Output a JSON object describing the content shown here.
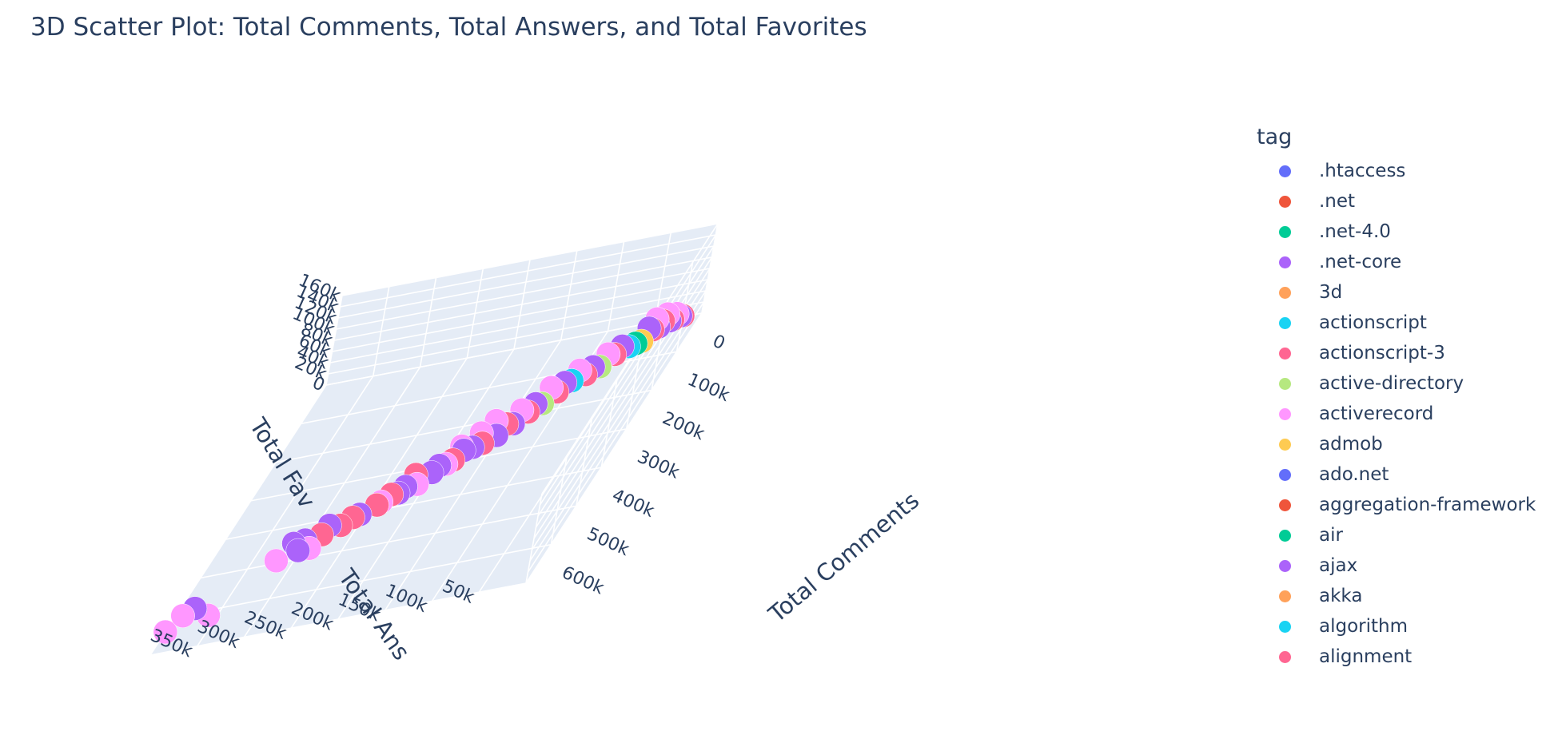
{
  "title": "3D Scatter Plot: Total Comments, Total Answers, and Total Favorites",
  "legend": {
    "title": "tag",
    "items": [
      {
        "label": ".htaccess",
        "color": "#636efa"
      },
      {
        "label": ".net",
        "color": "#EF553B"
      },
      {
        "label": ".net-4.0",
        "color": "#00cc96"
      },
      {
        "label": ".net-core",
        "color": "#ab63fa"
      },
      {
        "label": "3d",
        "color": "#FFA15A"
      },
      {
        "label": "actionscript",
        "color": "#19d3f3"
      },
      {
        "label": "actionscript-3",
        "color": "#FF6692"
      },
      {
        "label": "active-directory",
        "color": "#B6E880"
      },
      {
        "label": "activerecord",
        "color": "#FF97FF"
      },
      {
        "label": "admob",
        "color": "#FECB52"
      },
      {
        "label": "ado.net",
        "color": "#636efa"
      },
      {
        "label": "aggregation-framework",
        "color": "#EF553B"
      },
      {
        "label": "air",
        "color": "#00cc96"
      },
      {
        "label": "ajax",
        "color": "#ab63fa"
      },
      {
        "label": "akka",
        "color": "#FFA15A"
      },
      {
        "label": "algorithm",
        "color": "#19d3f3"
      },
      {
        "label": "alignment",
        "color": "#FF6692"
      }
    ]
  },
  "chart_data": {
    "type": "scatter",
    "xlabel": "Total Comments",
    "ylabel": "Total Ans",
    "zlabel": "Total Fav",
    "x_ticks": [
      "0",
      "100k",
      "200k",
      "300k",
      "400k",
      "500k",
      "600k"
    ],
    "y_ticks": [
      "50k",
      "100k",
      "150k",
      "200k",
      "250k",
      "300k",
      "350k"
    ],
    "z_ticks": [
      "0",
      "20k",
      "40k",
      "60k",
      "80k",
      "100k",
      "120k",
      "140k",
      "160k"
    ],
    "grid": true,
    "legend_position": "right",
    "points": [
      {
        "tag": "activerecord",
        "x": 640000,
        "y": 400000,
        "z": 0
      },
      {
        "tag": "activerecord",
        "x": 610000,
        "y": 390000,
        "z": 5000
      },
      {
        "tag": "activerecord",
        "x": 620000,
        "y": 360000,
        "z": 3000
      },
      {
        "tag": "ajax",
        "x": 600000,
        "y": 380000,
        "z": 8000
      },
      {
        "tag": "activerecord",
        "x": 500000,
        "y": 320000,
        "z": 5000
      },
      {
        "tag": "activerecord",
        "x": 480000,
        "y": 290000,
        "z": 4000
      },
      {
        "tag": "ajax",
        "x": 490000,
        "y": 300000,
        "z": 10000
      },
      {
        "tag": "ajax",
        "x": 470000,
        "y": 310000,
        "z": 12000
      },
      {
        "tag": "ajax",
        "x": 460000,
        "y": 300000,
        "z": 8000
      },
      {
        "tag": "actionscript-3",
        "x": 450000,
        "y": 285000,
        "z": 6000
      },
      {
        "tag": "ajax",
        "x": 440000,
        "y": 280000,
        "z": 14000
      },
      {
        "tag": "actionscript-3",
        "x": 430000,
        "y": 270000,
        "z": 4000
      },
      {
        "tag": "actionscript-3",
        "x": 420000,
        "y": 260000,
        "z": 8000
      },
      {
        "tag": "ajax",
        "x": 410000,
        "y": 255000,
        "z": 5000
      },
      {
        "tag": "actionscript-3",
        "x": 400000,
        "y": 240000,
        "z": 10000
      },
      {
        "tag": "activerecord",
        "x": 380000,
        "y": 240000,
        "z": 2000
      },
      {
        "tag": "actionscript-3",
        "x": 380000,
        "y": 230000,
        "z": 12000
      },
      {
        "tag": "ajax",
        "x": 370000,
        "y": 225000,
        "z": 6000
      },
      {
        "tag": "ajax",
        "x": 360000,
        "y": 220000,
        "z": 9000
      },
      {
        "tag": "activerecord",
        "x": 350000,
        "y": 210000,
        "z": 3000
      },
      {
        "tag": "actionscript-3",
        "x": 340000,
        "y": 215000,
        "z": 15000
      },
      {
        "tag": "ajax",
        "x": 330000,
        "y": 200000,
        "z": 7000
      },
      {
        "tag": "ajax",
        "x": 320000,
        "y": 195000,
        "z": 11000
      },
      {
        "tag": "activerecord",
        "x": 310000,
        "y": 190000,
        "z": 5000
      },
      {
        "tag": "actionscript-3",
        "x": 300000,
        "y": 185000,
        "z": 4000
      },
      {
        "tag": "ajax",
        "x": 300000,
        "y": 175000,
        "z": 18000
      },
      {
        "tag": "activerecord",
        "x": 290000,
        "y": 180000,
        "z": 20000
      },
      {
        "tag": "ajax",
        "x": 280000,
        "y": 170000,
        "z": 8000
      },
      {
        "tag": "actionscript-3",
        "x": 280000,
        "y": 160000,
        "z": 12000
      },
      {
        "tag": "activerecord",
        "x": 270000,
        "y": 165000,
        "z": 25000
      },
      {
        "tag": "ajax",
        "x": 260000,
        "y": 150000,
        "z": 9000
      },
      {
        "tag": "activerecord",
        "x": 250000,
        "y": 155000,
        "z": 30000
      },
      {
        "tag": "actionscript-3",
        "x": 240000,
        "y": 145000,
        "z": 14000
      },
      {
        "tag": "ajax",
        "x": 230000,
        "y": 140000,
        "z": 6000
      },
      {
        "tag": "activerecord",
        "x": 220000,
        "y": 135000,
        "z": 22000
      },
      {
        "tag": "actionscript-3",
        "x": 210000,
        "y": 130000,
        "z": 10000
      },
      {
        "tag": "ajax",
        "x": 200000,
        "y": 125000,
        "z": 16000
      },
      {
        "tag": "active-directory",
        "x": 190000,
        "y": 120000,
        "z": 8000
      },
      {
        "tag": "activerecord",
        "x": 180000,
        "y": 115000,
        "z": 28000
      },
      {
        "tag": "actionscript-3",
        "x": 170000,
        "y": 110000,
        "z": 12000
      },
      {
        "tag": "ajax",
        "x": 160000,
        "y": 105000,
        "z": 20000
      },
      {
        "tag": "actionscript",
        "x": 150000,
        "y": 100000,
        "z": 15000
      },
      {
        "tag": "activerecord",
        "x": 140000,
        "y": 95000,
        "z": 25000
      },
      {
        "tag": "actionscript-3",
        "x": 130000,
        "y": 90000,
        "z": 9000
      },
      {
        "tag": "ajax",
        "x": 120000,
        "y": 85000,
        "z": 14000
      },
      {
        "tag": "active-directory",
        "x": 110000,
        "y": 80000,
        "z": 6000
      },
      {
        "tag": "activerecord",
        "x": 100000,
        "y": 75000,
        "z": 20000
      },
      {
        "tag": "actionscript-3",
        "x": 90000,
        "y": 70000,
        "z": 11000
      },
      {
        "tag": "ajax",
        "x": 80000,
        "y": 65000,
        "z": 17000
      },
      {
        "tag": "actionscript",
        "x": 70000,
        "y": 60000,
        "z": 8000
      },
      {
        "tag": ".net-4.0",
        "x": 60000,
        "y": 55000,
        "z": 5000
      },
      {
        "tag": "admob",
        "x": 55000,
        "y": 50000,
        "z": 4000
      },
      {
        "tag": "ajax",
        "x": 50000,
        "y": 45000,
        "z": 22000
      },
      {
        "tag": "actionscript-3",
        "x": 45000,
        "y": 42000,
        "z": 15000
      },
      {
        "tag": "activerecord",
        "x": 40000,
        "y": 40000,
        "z": 30000
      },
      {
        "tag": "ajax",
        "x": 35000,
        "y": 38000,
        "z": 12000
      },
      {
        "tag": "actionscript-3",
        "x": 30000,
        "y": 35000,
        "z": 18000
      },
      {
        "tag": "activerecord",
        "x": 25000,
        "y": 32000,
        "z": 26000
      },
      {
        "tag": "ajax",
        "x": 20000,
        "y": 30000,
        "z": 10000
      },
      {
        "tag": "actionscript-3",
        "x": 15000,
        "y": 28000,
        "z": 8000
      },
      {
        "tag": "activerecord",
        "x": 10000,
        "y": 25000,
        "z": 14000
      },
      {
        "tag": "ajax",
        "x": 5000,
        "y": 22000,
        "z": 6000
      },
      {
        "tag": "actionscript-3",
        "x": 3000,
        "y": 20000,
        "z": 4000
      }
    ]
  }
}
